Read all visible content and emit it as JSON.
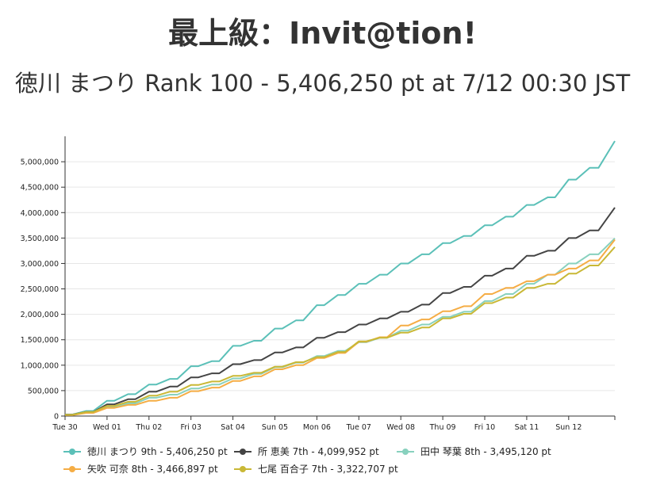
{
  "chart_data": {
    "type": "line",
    "title": "最上級：Invit@tion!",
    "subtitle": "徳川 まつり Rank 100 - 5,406,250 pt at 7/12 00:30 JST",
    "xlabel": "",
    "ylabel": "",
    "x_ticks": [
      "Tue 30",
      "Wed 01",
      "Thu 02",
      "Fri 03",
      "Sat 04",
      "Sun 05",
      "Mon 06",
      "Tue 07",
      "Wed 08",
      "Thu 09",
      "Fri 10",
      "Sat 11",
      "Sun 12"
    ],
    "x_range_days": [
      0,
      13.1
    ],
    "ylim": [
      0,
      5500000
    ],
    "y_ticks": [
      0,
      500000,
      1000000,
      1500000,
      2000000,
      2500000,
      3000000,
      3500000,
      4000000,
      4500000,
      5000000
    ],
    "y_tick_labels": [
      "0",
      "500,000",
      "1,000,000",
      "1,500,000",
      "2,000,000",
      "2,500,000",
      "3,000,000",
      "3,500,000",
      "4,000,000",
      "4,500,000",
      "5,000,000"
    ],
    "grid": "horizontal",
    "legend_position": "bottom",
    "series": [
      {
        "name": "徳川 まつり 9th - 5,406,250 pt",
        "color": "#5bc0b8",
        "x": [
          0,
          0.5,
          1,
          1.5,
          2,
          2.5,
          3,
          3.5,
          4,
          4.5,
          5,
          5.5,
          6,
          6.5,
          7,
          7.5,
          8,
          8.5,
          9,
          9.5,
          10,
          10.5,
          11,
          11.5,
          12,
          12.5,
          13.1
        ],
        "values": [
          30000,
          100000,
          300000,
          430000,
          620000,
          730000,
          980000,
          1080000,
          1380000,
          1480000,
          1720000,
          1880000,
          2180000,
          2380000,
          2600000,
          2780000,
          3000000,
          3180000,
          3400000,
          3540000,
          3750000,
          3920000,
          4150000,
          4300000,
          4650000,
          4880000,
          5406250
        ]
      },
      {
        "name": "所 恵美 7th - 4,099,952 pt",
        "color": "#444444",
        "x": [
          0,
          0.5,
          1,
          1.5,
          2,
          2.5,
          3,
          3.5,
          4,
          4.5,
          5,
          5.5,
          6,
          6.5,
          7,
          7.5,
          8,
          8.5,
          9,
          9.5,
          10,
          10.5,
          11,
          11.5,
          12,
          12.5,
          13.1
        ],
        "values": [
          30000,
          80000,
          230000,
          330000,
          480000,
          580000,
          760000,
          840000,
          1020000,
          1100000,
          1250000,
          1350000,
          1540000,
          1650000,
          1800000,
          1920000,
          2050000,
          2190000,
          2420000,
          2540000,
          2760000,
          2900000,
          3150000,
          3250000,
          3500000,
          3650000,
          4099952
        ]
      },
      {
        "name": "田中 琴葉 8th - 3,495,120 pt",
        "color": "#88d1be",
        "x": [
          0,
          0.5,
          1,
          1.5,
          2,
          2.5,
          3,
          3.5,
          4,
          4.5,
          5,
          5.5,
          6,
          6.5,
          7,
          7.5,
          8,
          8.5,
          9,
          9.5,
          10,
          10.5,
          11,
          11.5,
          12,
          12.5,
          13.1
        ],
        "values": [
          25000,
          70000,
          180000,
          250000,
          360000,
          420000,
          540000,
          620000,
          740000,
          830000,
          960000,
          1050000,
          1180000,
          1280000,
          1450000,
          1540000,
          1680000,
          1800000,
          1950000,
          2050000,
          2260000,
          2400000,
          2600000,
          2780000,
          3000000,
          3180000,
          3495120
        ]
      },
      {
        "name": "矢吹 可奈 8th - 3,466,897 pt",
        "color": "#f5ad45",
        "x": [
          0,
          0.5,
          1,
          1.5,
          2,
          2.5,
          3,
          3.5,
          4,
          4.5,
          5,
          5.5,
          6,
          6.5,
          7,
          7.5,
          8,
          8.5,
          9,
          9.5,
          10,
          10.5,
          11,
          11.5,
          12,
          12.5,
          13.1
        ],
        "values": [
          20000,
          60000,
          160000,
          220000,
          300000,
          360000,
          490000,
          560000,
          690000,
          780000,
          920000,
          1000000,
          1140000,
          1240000,
          1460000,
          1550000,
          1780000,
          1900000,
          2060000,
          2160000,
          2400000,
          2520000,
          2650000,
          2780000,
          2900000,
          3060000,
          3466897
        ]
      },
      {
        "name": "七尾 百合子 7th - 3,322,707 pt",
        "color": "#c9b836",
        "x": [
          0,
          0.5,
          1,
          1.5,
          2,
          2.5,
          3,
          3.5,
          4,
          4.5,
          5,
          5.5,
          6,
          6.5,
          7,
          7.5,
          8,
          8.5,
          9,
          9.5,
          10,
          10.5,
          11,
          11.5,
          12,
          12.5,
          13.1
        ],
        "values": [
          25000,
          80000,
          200000,
          280000,
          400000,
          480000,
          610000,
          680000,
          790000,
          850000,
          970000,
          1060000,
          1160000,
          1260000,
          1470000,
          1540000,
          1640000,
          1740000,
          1920000,
          2010000,
          2220000,
          2330000,
          2520000,
          2600000,
          2800000,
          2960000,
          3322707
        ]
      }
    ]
  }
}
